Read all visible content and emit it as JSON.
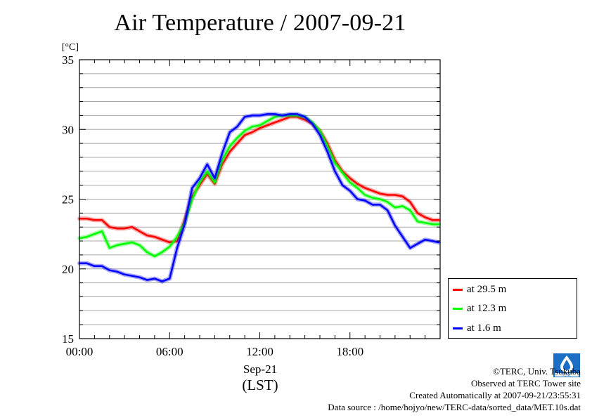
{
  "title": "Air Temperature / 2007-09-21",
  "chart_data": {
    "type": "line",
    "ylabel": "[°C]",
    "ylim": [
      15,
      35
    ],
    "yticks": [
      15,
      20,
      25,
      30,
      35
    ],
    "xlim": [
      0,
      24
    ],
    "xticks": [
      {
        "x": 0,
        "label": "00:00"
      },
      {
        "x": 6,
        "label": "06:00"
      },
      {
        "x": 12,
        "label": "12:00"
      },
      {
        "x": 18,
        "label": "18:00"
      }
    ],
    "xlabel_date": "Sep-21",
    "xlabel_unit": "(LST)",
    "grid": true,
    "legend_position": "right-bottom",
    "series": [
      {
        "name": "at 29.5 m",
        "color": "#ff0000",
        "x": [
          0,
          0.5,
          1,
          1.5,
          2,
          2.5,
          3,
          3.5,
          4,
          4.5,
          5,
          5.5,
          6,
          6.5,
          7,
          7.5,
          8,
          8.5,
          9,
          9.5,
          10,
          10.5,
          11,
          11.5,
          12,
          12.5,
          13,
          13.5,
          14,
          14.5,
          15,
          15.5,
          16,
          16.5,
          17,
          17.5,
          18,
          18.5,
          19,
          19.5,
          20,
          20.5,
          21,
          21.5,
          22,
          22.5,
          23,
          23.5,
          23.9
        ],
        "y": [
          23.6,
          23.6,
          23.5,
          23.5,
          23.0,
          22.9,
          22.9,
          23.0,
          22.7,
          22.4,
          22.3,
          22.1,
          21.9,
          22.0,
          23.5,
          25.2,
          26.0,
          26.8,
          26.1,
          27.5,
          28.4,
          29.0,
          29.6,
          29.8,
          30.1,
          30.3,
          30.5,
          30.7,
          30.9,
          30.9,
          30.7,
          30.4,
          29.9,
          29.0,
          27.8,
          27.0,
          26.5,
          26.1,
          25.8,
          25.6,
          25.4,
          25.3,
          25.3,
          25.2,
          24.8,
          24.0,
          23.7,
          23.5,
          23.5
        ]
      },
      {
        "name": "at 12.3 m",
        "color": "#00ff00",
        "x": [
          0,
          0.5,
          1,
          1.5,
          2,
          2.5,
          3,
          3.5,
          4,
          4.5,
          5,
          5.5,
          6,
          6.5,
          7,
          7.5,
          8,
          8.5,
          9,
          9.5,
          10,
          10.5,
          11,
          11.5,
          12,
          12.5,
          13,
          13.5,
          14,
          14.5,
          15,
          15.5,
          16,
          16.5,
          17,
          17.5,
          18,
          18.5,
          19,
          19.5,
          20,
          20.5,
          21,
          21.5,
          22,
          22.5,
          23,
          23.5,
          23.9
        ],
        "y": [
          22.2,
          22.3,
          22.5,
          22.7,
          21.5,
          21.7,
          21.8,
          21.9,
          21.7,
          21.2,
          20.9,
          21.2,
          21.6,
          22.3,
          23.3,
          25.0,
          26.2,
          27.0,
          26.2,
          27.8,
          28.8,
          29.4,
          29.9,
          30.2,
          30.3,
          30.6,
          30.9,
          31.0,
          31.0,
          31.0,
          30.9,
          30.5,
          29.9,
          28.8,
          27.6,
          26.9,
          26.2,
          25.8,
          25.3,
          25.1,
          25.0,
          24.8,
          24.4,
          24.5,
          24.2,
          23.4,
          23.3,
          23.2,
          23.2
        ]
      },
      {
        "name": "at 1.6 m",
        "color": "#0000ff",
        "x": [
          0,
          0.5,
          1,
          1.5,
          2,
          2.5,
          3,
          3.5,
          4,
          4.5,
          5,
          5.5,
          6,
          6.5,
          7,
          7.5,
          8,
          8.5,
          9,
          9.5,
          10,
          10.5,
          11,
          11.5,
          12,
          12.5,
          13,
          13.5,
          14,
          14.5,
          15,
          15.5,
          16,
          16.5,
          17,
          17.5,
          18,
          18.5,
          19,
          19.5,
          20,
          20.5,
          21,
          21.5,
          22,
          22.5,
          23,
          23.5,
          23.9
        ],
        "y": [
          20.4,
          20.4,
          20.2,
          20.2,
          19.9,
          19.8,
          19.6,
          19.5,
          19.4,
          19.2,
          19.3,
          19.1,
          19.3,
          21.5,
          23.2,
          25.8,
          26.5,
          27.5,
          26.5,
          28.3,
          29.8,
          30.2,
          30.9,
          31.0,
          31.0,
          31.1,
          31.1,
          31.0,
          31.1,
          31.1,
          30.9,
          30.4,
          29.6,
          28.4,
          27.0,
          26.0,
          25.6,
          25.0,
          24.9,
          24.6,
          24.6,
          24.2,
          23.1,
          22.3,
          21.5,
          21.8,
          22.1,
          22.0,
          21.9
        ]
      }
    ]
  },
  "footer": {
    "copyright": "©TERC, Univ. Tsukuba",
    "observed": "Observed at TERC Tower site",
    "created": "Created Automatically at 2007-09-21/23:55:31",
    "source": "Data source : /home/hojyo/new/TERC-data/sorted_data/MET.10s.dat"
  }
}
